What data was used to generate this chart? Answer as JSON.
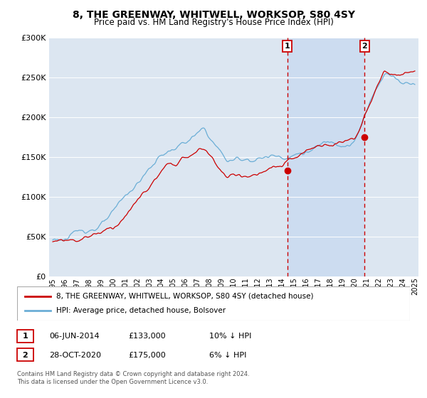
{
  "title": "8, THE GREENWAY, WHITWELL, WORKSOP, S80 4SY",
  "subtitle": "Price paid vs. HM Land Registry's House Price Index (HPI)",
  "legend_line1": "8, THE GREENWAY, WHITWELL, WORKSOP, S80 4SY (detached house)",
  "legend_line2": "HPI: Average price, detached house, Bolsover",
  "ann1_label": "1",
  "ann1_date": "06-JUN-2014",
  "ann1_price": "£133,000",
  "ann1_pct": "10% ↓ HPI",
  "ann1_x": 2014.44,
  "ann1_y": 133000,
  "ann2_label": "2",
  "ann2_date": "28-OCT-2020",
  "ann2_price": "£175,000",
  "ann2_pct": "6% ↓ HPI",
  "ann2_x": 2020.83,
  "ann2_y": 175000,
  "footer1": "Contains HM Land Registry data © Crown copyright and database right 2024.",
  "footer2": "This data is licensed under the Open Government Licence v3.0.",
  "hpi_color": "#6baed6",
  "price_color": "#cc0000",
  "ann_color": "#cc0000",
  "bg_color": "#dce6f1",
  "shade_color": "#c6d9f0",
  "ylim": [
    0,
    300000
  ],
  "yticks": [
    0,
    50000,
    100000,
    150000,
    200000,
    250000,
    300000
  ],
  "xlim_start": 1994.7,
  "xlim_end": 2025.3,
  "xtick_start": 1995,
  "xtick_end": 2025
}
